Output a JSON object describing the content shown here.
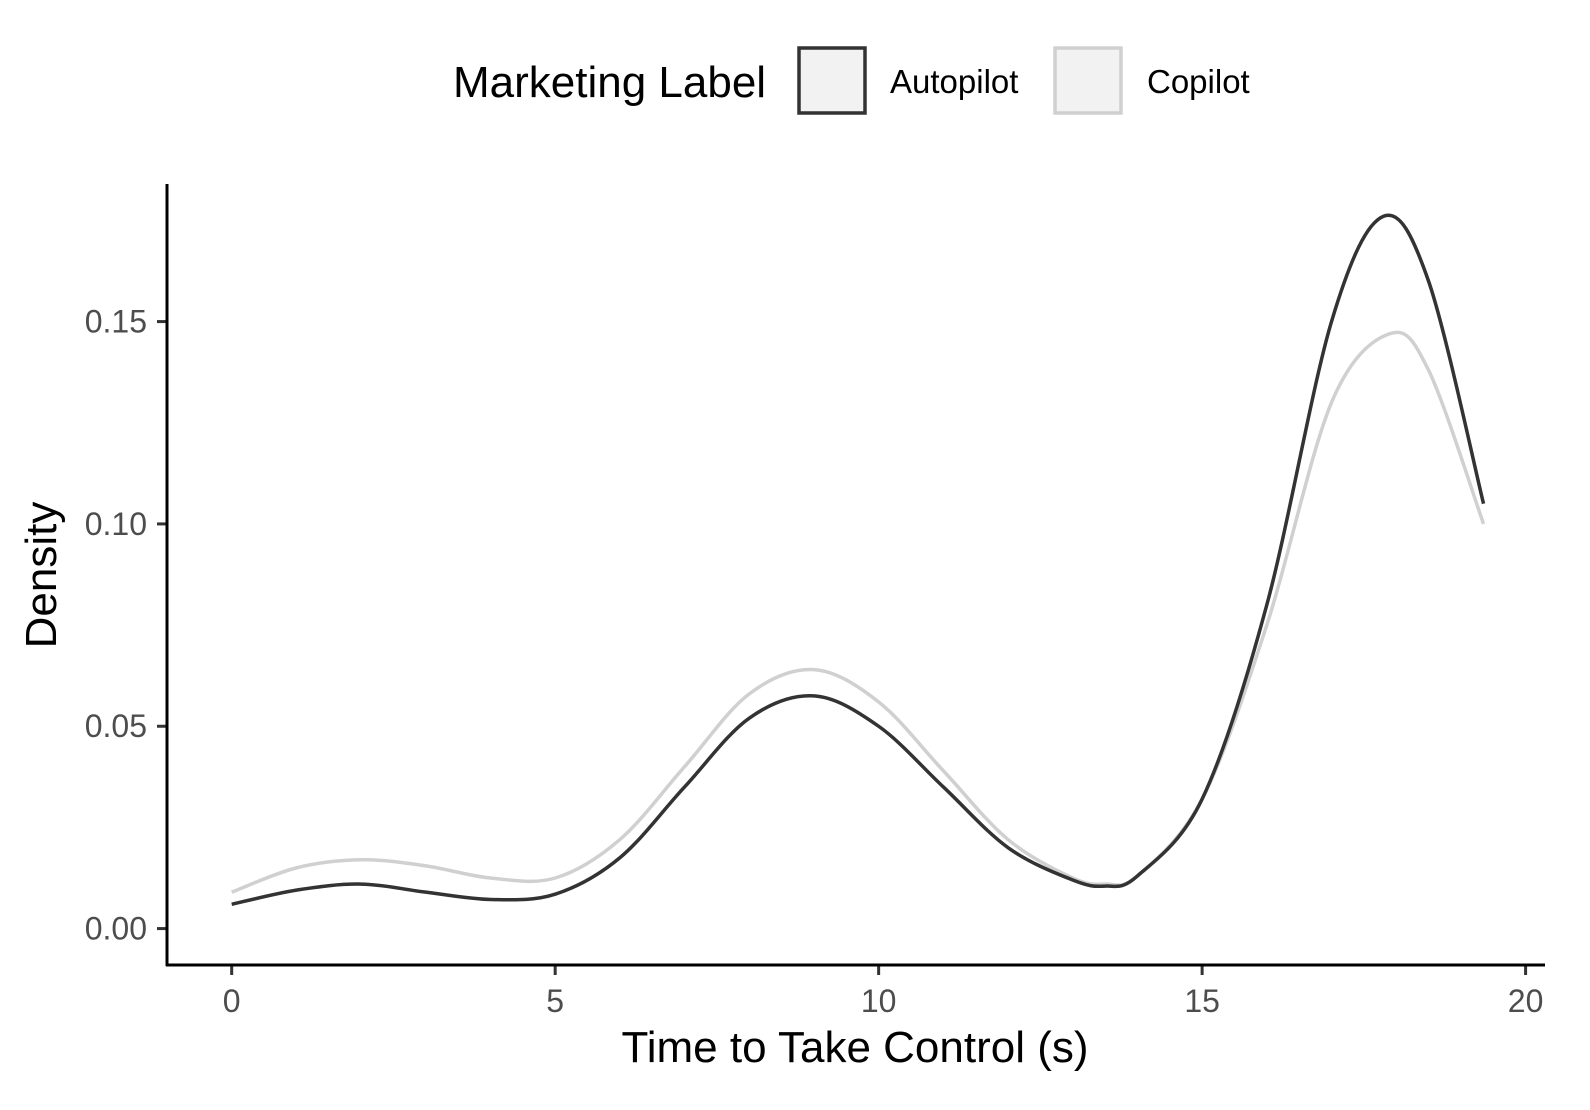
{
  "chart_data": {
    "type": "line",
    "xlabel": "Time to Take Control (s)",
    "ylabel": "Density",
    "xlim": [
      -1,
      20.3
    ],
    "ylim": [
      -0.009,
      0.184
    ],
    "x_ticks": [
      0,
      5,
      10,
      15,
      20
    ],
    "x_tick_labels": [
      "0",
      "5",
      "10",
      "15",
      "20"
    ],
    "y_ticks": [
      0,
      0.05,
      0.1,
      0.15
    ],
    "y_tick_labels": [
      "0.00",
      "0.05",
      "0.10",
      "0.15"
    ],
    "grid": false,
    "legend": {
      "title": "Marketing Label",
      "position": "top"
    },
    "series": [
      {
        "name": "Autopilot",
        "color": "#333333",
        "x": [
          0,
          1,
          2,
          3,
          4,
          5,
          6,
          7,
          8,
          9,
          10,
          11,
          12,
          13,
          13.5,
          14,
          15,
          16,
          17,
          17.8,
          18.5,
          19.35
        ],
        "y": [
          0.006,
          0.0095,
          0.011,
          0.009,
          0.0072,
          0.0085,
          0.0175,
          0.035,
          0.052,
          0.0575,
          0.05,
          0.035,
          0.02,
          0.012,
          0.0105,
          0.013,
          0.032,
          0.08,
          0.15,
          0.176,
          0.16,
          0.105
        ]
      },
      {
        "name": "Copilot",
        "color": "#d0d0d0",
        "x": [
          0,
          1,
          2,
          3,
          4,
          5,
          6,
          7,
          8,
          9,
          10,
          11,
          12,
          13,
          13.5,
          14,
          15,
          16,
          17,
          17.9,
          18.5,
          19.35
        ],
        "y": [
          0.009,
          0.015,
          0.017,
          0.0155,
          0.0125,
          0.0125,
          0.022,
          0.04,
          0.058,
          0.064,
          0.056,
          0.039,
          0.022,
          0.0125,
          0.011,
          0.013,
          0.032,
          0.075,
          0.13,
          0.147,
          0.138,
          0.1
        ]
      }
    ]
  }
}
